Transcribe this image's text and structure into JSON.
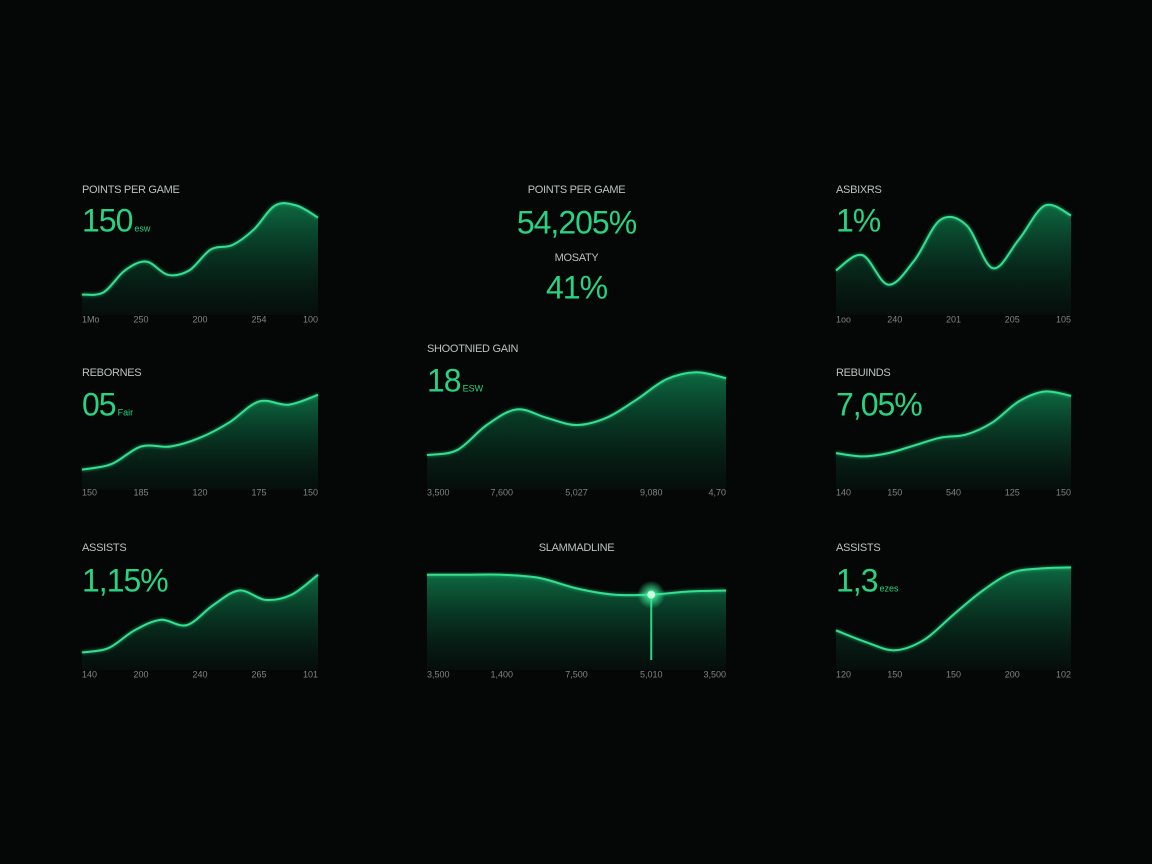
{
  "panels": [
    {
      "label": "POINTS PER GAME",
      "value": "150",
      "suffix": "esw",
      "ticks": [
        "1Mo",
        "250",
        "200",
        "254",
        "100"
      ],
      "values": [
        14,
        16,
        36,
        44,
        32,
        36,
        55,
        59,
        73,
        95,
        95,
        84
      ]
    },
    {
      "label": "POINTS PER GAME",
      "value": "54,205%",
      "sublabel": "MOSATY",
      "value2": "41%"
    },
    {
      "label": "ASBIXRS",
      "value": "1%",
      "ticks": [
        "1oo",
        "240",
        "201",
        "205",
        "105"
      ],
      "values": [
        36,
        50,
        23,
        45,
        82,
        77,
        38,
        64,
        95,
        86
      ]
    },
    {
      "label": "REBORNES",
      "value": "05",
      "suffix": "Fair",
      "ticks": [
        "150",
        "185",
        "120",
        "175",
        "150"
      ],
      "values": [
        14,
        19,
        35,
        35,
        43,
        57,
        76,
        73,
        82
      ]
    },
    {
      "label": "SHOOTNIED GAIN",
      "value": "18",
      "suffix": "ESW",
      "ticks": [
        "3,500",
        "7,600",
        "5,027",
        "9,080",
        "4,70"
      ],
      "values": [
        25,
        29,
        50,
        63,
        56,
        50,
        56,
        71,
        88,
        94,
        89
      ]
    },
    {
      "label": "REBUINDS",
      "value": "7,05%",
      "ticks": [
        "140",
        "150",
        "540",
        "125",
        "150"
      ],
      "values": [
        29,
        26,
        29,
        36,
        43,
        46,
        57,
        76,
        85,
        81
      ]
    },
    {
      "label": "ASSISTS",
      "value": "1,15%",
      "ticks": [
        "140",
        "200",
        "240",
        "265",
        "101"
      ],
      "values": [
        12,
        16,
        33,
        43,
        38,
        57,
        71,
        62,
        67,
        86
      ]
    },
    {
      "label": "SLAMMADLINE",
      "ticks": [
        "3,500",
        "1,400",
        "7,500",
        "5,010",
        "3,500"
      ],
      "values": [
        86,
        86,
        86,
        83,
        73,
        67,
        67,
        70,
        71
      ],
      "highlight": 6
    },
    {
      "label": "ASSISTS",
      "value": "1,3",
      "suffix": "ezes",
      "ticks": [
        "120",
        "150",
        "150",
        "200",
        "102"
      ],
      "values": [
        33,
        22,
        14,
        24,
        48,
        71,
        88,
        92,
        93
      ]
    }
  ]
}
